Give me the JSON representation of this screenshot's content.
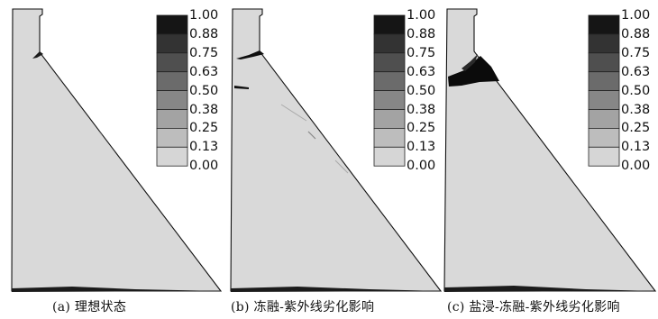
{
  "panels": [
    {
      "caption": "(a) 理想状态"
    },
    {
      "caption": "(b) 冻融-紫外线劣化影响"
    },
    {
      "caption": "(c) 盐浸-冻融-紫外线劣化影响"
    }
  ],
  "legend": {
    "labels": [
      "1.00",
      "0.88",
      "0.75",
      "0.63",
      "0.50",
      "0.38",
      "0.25",
      "0.13",
      "0.00"
    ],
    "colors": [
      "#151515",
      "#333333",
      "#4f4f4f",
      "#6b6b6b",
      "#878787",
      "#a3a3a3",
      "#bdbdbd",
      "#d6d6d6"
    ]
  },
  "colors": {
    "dam_fill": "#d9d9d9",
    "outline": "#111111",
    "damage": "#0d0d0d"
  }
}
